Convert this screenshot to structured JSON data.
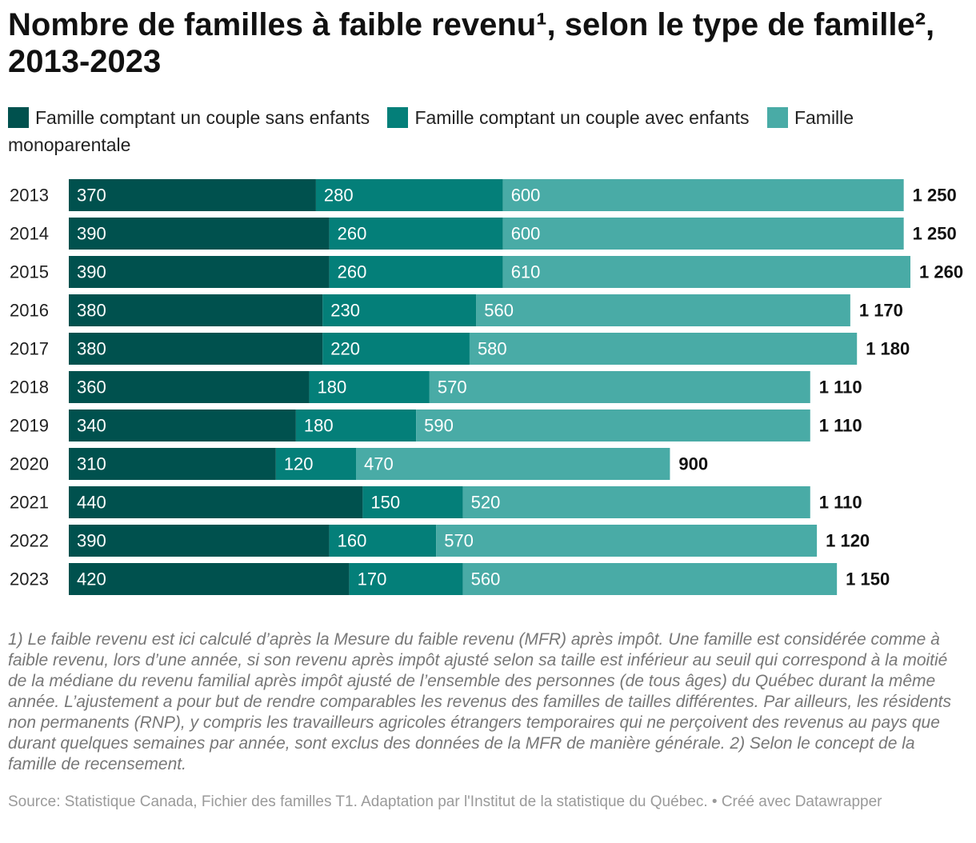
{
  "title": "Nombre de familles à faible revenu¹, selon le type de famille², 2013-2023",
  "legend": [
    {
      "label": "Famille comptant un couple sans enfants",
      "color": "#00514e"
    },
    {
      "label": "Famille comptant un couple avec enfants",
      "color": "#047f79"
    },
    {
      "label": "Famille monoparentale",
      "color": "#49aba6"
    }
  ],
  "chart_data": {
    "type": "bar",
    "orientation": "horizontal",
    "stacked": true,
    "categories": [
      "2013",
      "2014",
      "2015",
      "2016",
      "2017",
      "2018",
      "2019",
      "2020",
      "2021",
      "2022",
      "2023"
    ],
    "series": [
      {
        "name": "Famille comptant un couple sans enfants",
        "color": "#00514e",
        "values": [
          370,
          390,
          390,
          380,
          380,
          360,
          340,
          310,
          440,
          390,
          420
        ]
      },
      {
        "name": "Famille comptant un couple avec enfants",
        "color": "#047f79",
        "values": [
          280,
          260,
          260,
          230,
          220,
          180,
          180,
          120,
          150,
          160,
          170
        ]
      },
      {
        "name": "Famille monoparentale",
        "color": "#49aba6",
        "values": [
          600,
          600,
          610,
          560,
          580,
          570,
          590,
          470,
          520,
          570,
          560
        ]
      }
    ],
    "totals": [
      1250,
      1250,
      1260,
      1170,
      1180,
      1110,
      1110,
      900,
      1110,
      1120,
      1150
    ],
    "segment_labels": [
      [
        "370",
        "280",
        "600"
      ],
      [
        "390",
        "260",
        "600"
      ],
      [
        "390",
        "260",
        "610"
      ],
      [
        "380",
        "230",
        "560"
      ],
      [
        "380",
        "220",
        "580"
      ],
      [
        "360",
        "180",
        "570"
      ],
      [
        "340",
        "180",
        "590"
      ],
      [
        "310",
        "120",
        "470"
      ],
      [
        "440",
        "150",
        "520"
      ],
      [
        "390",
        "160",
        "570"
      ],
      [
        "420",
        "170",
        "560"
      ]
    ],
    "total_labels": [
      "1 250",
      "1 250",
      "1 260",
      "1 170",
      "1 180",
      "1 110",
      "1 110",
      "900",
      "1 110",
      "1 120",
      "1 150"
    ],
    "xlim": [
      0,
      1260
    ]
  },
  "notes": "1) Le faible revenu est ici calculé d’après la Mesure du faible revenu (MFR) après impôt. Une famille est considérée comme à faible revenu, lors d’une année, si son revenu après impôt ajusté selon sa taille est inférieur au seuil qui correspond à la moitié de la médiane du revenu familial après impôt ajusté de l’ensemble des personnes (de tous âges) du Québec durant la même année. L’ajustement a pour but de rendre comparables les revenus des familles de tailles différentes. Par ailleurs, les résidents non permanents (RNP), y compris les travailleurs agricoles étrangers temporaires qui ne perçoivent des revenus au pays que durant quelques semaines par année, sont exclus des données de la MFR de manière générale. 2) Selon le concept de la famille de recensement.",
  "source": {
    "text": "Source: Statistique Canada, Fichier des familles T1. Adaptation par l'Institut de la statistique du Québec.",
    "separator": " • ",
    "credit": "Créé avec Datawrapper"
  }
}
